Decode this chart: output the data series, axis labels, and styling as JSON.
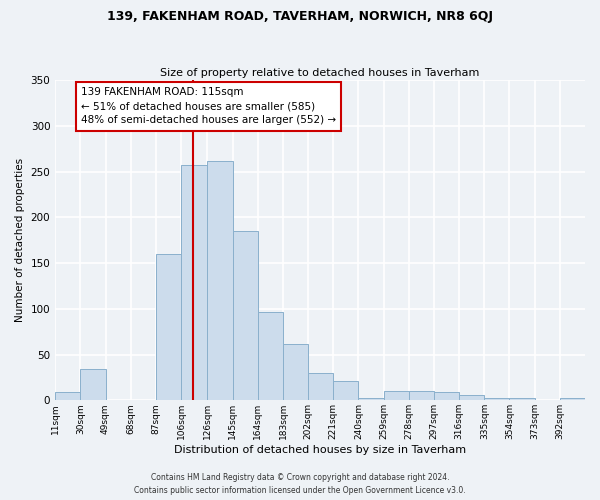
{
  "title": "139, FAKENHAM ROAD, TAVERHAM, NORWICH, NR8 6QJ",
  "subtitle": "Size of property relative to detached houses in Taverham",
  "xlabel": "Distribution of detached houses by size in Taverham",
  "ylabel": "Number of detached properties",
  "bar_color": "#ccdcec",
  "bar_edge_color": "#8ab0cc",
  "bin_labels": [
    "11sqm",
    "30sqm",
    "49sqm",
    "68sqm",
    "87sqm",
    "106sqm",
    "126sqm",
    "145sqm",
    "164sqm",
    "183sqm",
    "202sqm",
    "221sqm",
    "240sqm",
    "259sqm",
    "278sqm",
    "297sqm",
    "316sqm",
    "335sqm",
    "354sqm",
    "373sqm",
    "392sqm"
  ],
  "bar_heights": [
    9,
    34,
    0,
    0,
    160,
    257,
    262,
    185,
    96,
    62,
    30,
    21,
    2,
    10,
    10,
    9,
    6,
    2,
    2,
    0,
    2
  ],
  "bin_edges": [
    11,
    30,
    49,
    68,
    87,
    106,
    126,
    145,
    164,
    183,
    202,
    221,
    240,
    259,
    278,
    297,
    316,
    335,
    354,
    373,
    392,
    411
  ],
  "vline_x": 115,
  "vline_color": "#cc0000",
  "ylim": [
    0,
    350
  ],
  "yticks": [
    0,
    50,
    100,
    150,
    200,
    250,
    300,
    350
  ],
  "annotation_text": "139 FAKENHAM ROAD: 115sqm\n← 51% of detached houses are smaller (585)\n48% of semi-detached houses are larger (552) →",
  "annotation_box_color": "#ffffff",
  "annotation_box_edge": "#cc0000",
  "footnote1": "Contains HM Land Registry data © Crown copyright and database right 2024.",
  "footnote2": "Contains public sector information licensed under the Open Government Licence v3.0.",
  "background_color": "#eef2f6",
  "grid_color": "#ffffff"
}
